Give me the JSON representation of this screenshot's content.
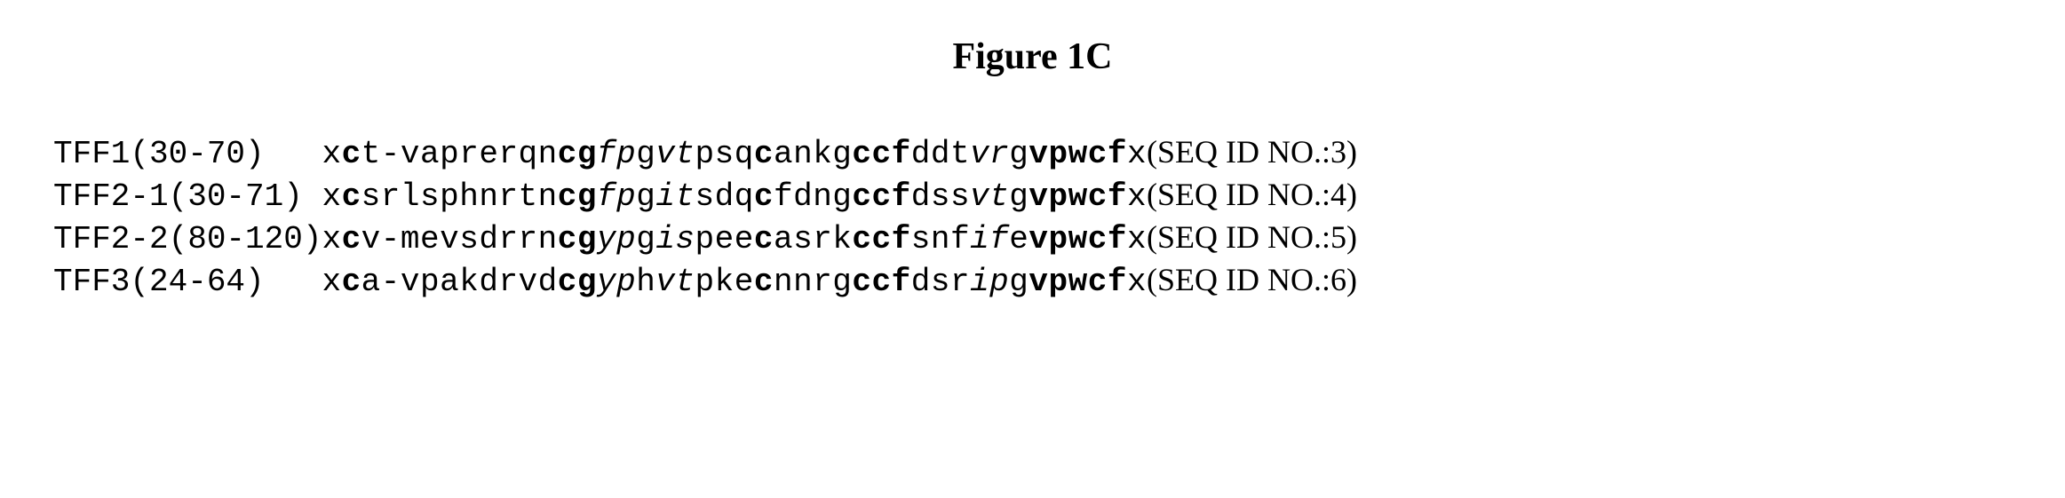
{
  "figure": {
    "title": "Figure  1C",
    "title_fontsize": 42,
    "title_weight": "bold",
    "background_color": "#ffffff",
    "text_color": "#000000",
    "mono_font": "Courier New",
    "serif_font": "Times New Roman",
    "seq_fontsize": 36,
    "rows": [
      {
        "name": "TFF1(30-70)",
        "chars": [
          {
            "t": "x",
            "s": ""
          },
          {
            "t": "c",
            "s": "b"
          },
          {
            "t": "t",
            "s": ""
          },
          {
            "t": "-",
            "s": ""
          },
          {
            "t": "v",
            "s": ""
          },
          {
            "t": "a",
            "s": ""
          },
          {
            "t": "p",
            "s": ""
          },
          {
            "t": "r",
            "s": ""
          },
          {
            "t": "e",
            "s": ""
          },
          {
            "t": "r",
            "s": ""
          },
          {
            "t": "q",
            "s": ""
          },
          {
            "t": "n",
            "s": ""
          },
          {
            "t": "c",
            "s": "b"
          },
          {
            "t": "g",
            "s": "b"
          },
          {
            "t": "f",
            "s": "i"
          },
          {
            "t": "p",
            "s": "i"
          },
          {
            "t": "g",
            "s": ""
          },
          {
            "t": "v",
            "s": "i"
          },
          {
            "t": "t",
            "s": "i"
          },
          {
            "t": "p",
            "s": ""
          },
          {
            "t": "s",
            "s": ""
          },
          {
            "t": "q",
            "s": ""
          },
          {
            "t": "c",
            "s": "b"
          },
          {
            "t": "a",
            "s": ""
          },
          {
            "t": "n",
            "s": ""
          },
          {
            "t": "k",
            "s": ""
          },
          {
            "t": "g",
            "s": ""
          },
          {
            "t": "c",
            "s": "b"
          },
          {
            "t": "c",
            "s": "b"
          },
          {
            "t": "f",
            "s": "b"
          },
          {
            "t": "d",
            "s": ""
          },
          {
            "t": "d",
            "s": ""
          },
          {
            "t": "t",
            "s": ""
          },
          {
            "t": "v",
            "s": "i"
          },
          {
            "t": "r",
            "s": "i"
          },
          {
            "t": "g",
            "s": ""
          },
          {
            "t": "v",
            "s": "b"
          },
          {
            "t": "p",
            "s": "b"
          },
          {
            "t": "w",
            "s": "b"
          },
          {
            "t": "c",
            "s": "b"
          },
          {
            "t": "f",
            "s": "b"
          },
          {
            "t": "x",
            "s": ""
          }
        ],
        "seqid": "(SEQ ID NO.:3)"
      },
      {
        "name": "TFF2-1(30-71)",
        "chars": [
          {
            "t": "x",
            "s": ""
          },
          {
            "t": "c",
            "s": "b"
          },
          {
            "t": "s",
            "s": ""
          },
          {
            "t": "r",
            "s": ""
          },
          {
            "t": "l",
            "s": ""
          },
          {
            "t": "s",
            "s": ""
          },
          {
            "t": "p",
            "s": ""
          },
          {
            "t": "h",
            "s": ""
          },
          {
            "t": "n",
            "s": ""
          },
          {
            "t": "r",
            "s": ""
          },
          {
            "t": "t",
            "s": ""
          },
          {
            "t": "n",
            "s": ""
          },
          {
            "t": "c",
            "s": "b"
          },
          {
            "t": "g",
            "s": "b"
          },
          {
            "t": "f",
            "s": "i"
          },
          {
            "t": "p",
            "s": "i"
          },
          {
            "t": "g",
            "s": ""
          },
          {
            "t": "i",
            "s": "i"
          },
          {
            "t": "t",
            "s": "i"
          },
          {
            "t": "s",
            "s": ""
          },
          {
            "t": "d",
            "s": ""
          },
          {
            "t": "q",
            "s": ""
          },
          {
            "t": "c",
            "s": "b"
          },
          {
            "t": "f",
            "s": ""
          },
          {
            "t": "d",
            "s": ""
          },
          {
            "t": "n",
            "s": ""
          },
          {
            "t": "g",
            "s": ""
          },
          {
            "t": "c",
            "s": "b"
          },
          {
            "t": "c",
            "s": "b"
          },
          {
            "t": "f",
            "s": "b"
          },
          {
            "t": "d",
            "s": ""
          },
          {
            "t": "s",
            "s": ""
          },
          {
            "t": "s",
            "s": ""
          },
          {
            "t": "v",
            "s": "i"
          },
          {
            "t": "t",
            "s": "i"
          },
          {
            "t": "g",
            "s": ""
          },
          {
            "t": "v",
            "s": "b"
          },
          {
            "t": "p",
            "s": "b"
          },
          {
            "t": "w",
            "s": "b"
          },
          {
            "t": "c",
            "s": "b"
          },
          {
            "t": "f",
            "s": "b"
          },
          {
            "t": "x",
            "s": ""
          }
        ],
        "seqid": "(SEQ ID NO.:4)"
      },
      {
        "name": "TFF2-2(80-120)",
        "chars": [
          {
            "t": "x",
            "s": ""
          },
          {
            "t": "c",
            "s": "b"
          },
          {
            "t": "v",
            "s": ""
          },
          {
            "t": "-",
            "s": ""
          },
          {
            "t": "m",
            "s": ""
          },
          {
            "t": "e",
            "s": ""
          },
          {
            "t": "v",
            "s": ""
          },
          {
            "t": "s",
            "s": ""
          },
          {
            "t": "d",
            "s": ""
          },
          {
            "t": "r",
            "s": ""
          },
          {
            "t": "r",
            "s": ""
          },
          {
            "t": "n",
            "s": ""
          },
          {
            "t": "c",
            "s": "b"
          },
          {
            "t": "g",
            "s": "b"
          },
          {
            "t": "y",
            "s": "i"
          },
          {
            "t": "p",
            "s": "i"
          },
          {
            "t": "g",
            "s": ""
          },
          {
            "t": "i",
            "s": "i"
          },
          {
            "t": "s",
            "s": "i"
          },
          {
            "t": "p",
            "s": ""
          },
          {
            "t": "e",
            "s": ""
          },
          {
            "t": "e",
            "s": ""
          },
          {
            "t": "c",
            "s": "b"
          },
          {
            "t": "a",
            "s": ""
          },
          {
            "t": "s",
            "s": ""
          },
          {
            "t": "r",
            "s": ""
          },
          {
            "t": "k",
            "s": ""
          },
          {
            "t": "c",
            "s": "b"
          },
          {
            "t": "c",
            "s": "b"
          },
          {
            "t": "f",
            "s": "b"
          },
          {
            "t": "s",
            "s": ""
          },
          {
            "t": "n",
            "s": ""
          },
          {
            "t": "f",
            "s": ""
          },
          {
            "t": "i",
            "s": "i"
          },
          {
            "t": "f",
            "s": "i"
          },
          {
            "t": "e",
            "s": ""
          },
          {
            "t": "v",
            "s": "b"
          },
          {
            "t": "p",
            "s": "b"
          },
          {
            "t": "w",
            "s": "b"
          },
          {
            "t": "c",
            "s": "b"
          },
          {
            "t": "f",
            "s": "b"
          },
          {
            "t": "x",
            "s": ""
          }
        ],
        "seqid": "(SEQ ID NO.:5)"
      },
      {
        "name": "TFF3(24-64)",
        "chars": [
          {
            "t": "x",
            "s": ""
          },
          {
            "t": "c",
            "s": "b"
          },
          {
            "t": "a",
            "s": ""
          },
          {
            "t": "-",
            "s": ""
          },
          {
            "t": "v",
            "s": ""
          },
          {
            "t": "p",
            "s": ""
          },
          {
            "t": "a",
            "s": ""
          },
          {
            "t": "k",
            "s": ""
          },
          {
            "t": "d",
            "s": ""
          },
          {
            "t": "r",
            "s": ""
          },
          {
            "t": "v",
            "s": ""
          },
          {
            "t": "d",
            "s": ""
          },
          {
            "t": "c",
            "s": "b"
          },
          {
            "t": "g",
            "s": "b"
          },
          {
            "t": "y",
            "s": "i"
          },
          {
            "t": "p",
            "s": "i"
          },
          {
            "t": "h",
            "s": ""
          },
          {
            "t": "v",
            "s": "i"
          },
          {
            "t": "t",
            "s": "i"
          },
          {
            "t": "p",
            "s": ""
          },
          {
            "t": "k",
            "s": ""
          },
          {
            "t": "e",
            "s": ""
          },
          {
            "t": "c",
            "s": "b"
          },
          {
            "t": "n",
            "s": ""
          },
          {
            "t": "n",
            "s": ""
          },
          {
            "t": "r",
            "s": ""
          },
          {
            "t": "g",
            "s": ""
          },
          {
            "t": "c",
            "s": "b"
          },
          {
            "t": "c",
            "s": "b"
          },
          {
            "t": "f",
            "s": "b"
          },
          {
            "t": "d",
            "s": ""
          },
          {
            "t": "s",
            "s": ""
          },
          {
            "t": "r",
            "s": ""
          },
          {
            "t": "i",
            "s": "i"
          },
          {
            "t": "p",
            "s": "i"
          },
          {
            "t": "g",
            "s": ""
          },
          {
            "t": "v",
            "s": "b"
          },
          {
            "t": "p",
            "s": "b"
          },
          {
            "t": "w",
            "s": "b"
          },
          {
            "t": "c",
            "s": "b"
          },
          {
            "t": "f",
            "s": "b"
          },
          {
            "t": "x",
            "s": ""
          }
        ],
        "seqid": "(SEQ ID NO.:6)"
      }
    ]
  }
}
